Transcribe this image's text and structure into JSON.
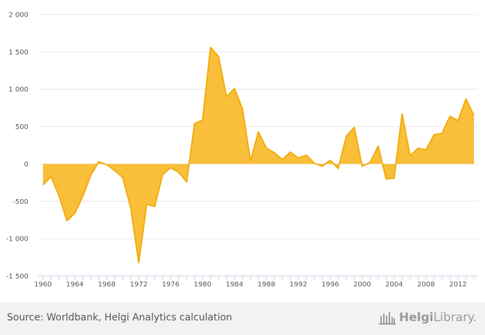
{
  "chart_data": {
    "type": "area",
    "title": "",
    "xlabel": "",
    "ylabel": "",
    "ylim": [
      -1500,
      2000
    ],
    "yticks": [
      -1500,
      -1000,
      -500,
      0,
      500,
      1000,
      1500,
      2000
    ],
    "ytick_labels": [
      "-1 500",
      "-1 000",
      "-500",
      "0",
      "500",
      "1 000",
      "1 500",
      "2 000"
    ],
    "xlim": [
      1960,
      2014
    ],
    "xticks": [
      1960,
      1964,
      1968,
      1972,
      1976,
      1980,
      1984,
      1988,
      1992,
      1996,
      2000,
      2004,
      2008,
      2012
    ],
    "fill_color": "#f9bf3b",
    "line_color": "#f2ab0a",
    "grid_color": "#e6e6e6",
    "x": [
      1960,
      1961,
      1962,
      1963,
      1964,
      1965,
      1966,
      1967,
      1968,
      1969,
      1970,
      1971,
      1972,
      1973,
      1974,
      1975,
      1976,
      1977,
      1978,
      1979,
      1980,
      1981,
      1982,
      1983,
      1984,
      1985,
      1986,
      1987,
      1988,
      1989,
      1990,
      1991,
      1992,
      1993,
      1994,
      1995,
      1996,
      1997,
      1998,
      1999,
      2000,
      2001,
      2002,
      2003,
      2004,
      2005,
      2006,
      2007,
      2008,
      2009,
      2010,
      2011,
      2012,
      2013,
      2014
    ],
    "values": [
      -280,
      -170,
      -420,
      -760,
      -660,
      -430,
      -150,
      30,
      -10,
      -90,
      -180,
      -590,
      -1320,
      -540,
      -570,
      -140,
      -50,
      -110,
      -240,
      540,
      590,
      1560,
      1440,
      900,
      1010,
      740,
      40,
      430,
      210,
      150,
      60,
      160,
      80,
      120,
      10,
      -30,
      50,
      -60,
      370,
      490,
      -30,
      20,
      240,
      -200,
      -190,
      670,
      110,
      210,
      190,
      390,
      410,
      640,
      580,
      870,
      650
    ]
  },
  "footer": {
    "source": "Source: Worldbank, Helgi Analytics calculation",
    "brand_bold": "Helgi",
    "brand_rest": "Library."
  },
  "icons": {
    "brand": "library-building-icon"
  }
}
